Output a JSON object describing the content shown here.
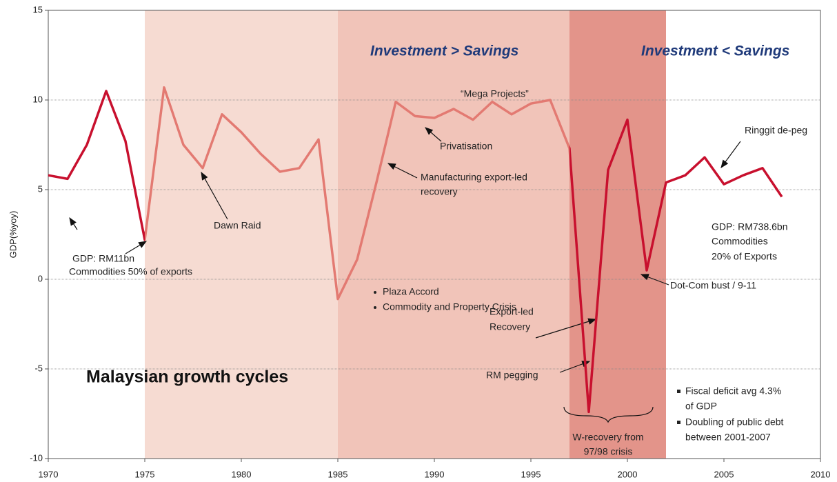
{
  "chart_data": {
    "type": "line",
    "title": "Malaysian growth cycles",
    "y_label": "GDP(%yoy)",
    "headers": [
      "Investment > Savings",
      "Investment < Savings"
    ],
    "x": [
      1970,
      1971,
      1972,
      1973,
      1974,
      1975,
      1976,
      1977,
      1978,
      1979,
      1980,
      1981,
      1982,
      1983,
      1984,
      1985,
      1986,
      1987,
      1988,
      1989,
      1990,
      1991,
      1992,
      1993,
      1994,
      1995,
      1996,
      1997,
      1998,
      1999,
      2000,
      2001,
      2002,
      2003,
      2004,
      2005,
      2006,
      2007,
      2008
    ],
    "series": [
      {
        "color": "#c8102e",
        "values": [
          5.8,
          5.6,
          7.5,
          10.5,
          7.7,
          2.2,
          10.7,
          7.5,
          6.2,
          9.2,
          8.2,
          7.0,
          6.0,
          6.2,
          7.8,
          -1.1,
          1.1,
          5.4,
          9.9,
          9.1,
          9.0,
          9.5,
          8.9,
          9.9,
          9.2,
          9.8,
          10.0,
          7.3,
          -7.4,
          6.1,
          8.9,
          0.5,
          5.4,
          5.8,
          6.8,
          5.3,
          5.8,
          6.2,
          4.6
        ]
      }
    ],
    "bands": [
      {
        "start": 1975,
        "end": 1985,
        "fill": "#f6dbd2",
        "line_color": "#e37a72"
      },
      {
        "start": 1985,
        "end": 1997,
        "fill": "#f1c4b9",
        "line_color": "#e37a72"
      },
      {
        "start": 1997,
        "end": 2002,
        "fill": "#e3948a"
      }
    ],
    "xlim": [
      1970,
      2010
    ],
    "xticks": [
      1970,
      1975,
      1980,
      1985,
      1990,
      1995,
      2000,
      2005,
      2010
    ],
    "ylim": [
      -10,
      15
    ],
    "yticks": [
      -10,
      -5,
      0,
      5,
      10,
      15
    ],
    "grid": true,
    "annotations": [
      [
        "GDP: RM11bn"
      ],
      [
        "Commodities 50% of exports"
      ],
      [
        "Dawn Raid"
      ],
      [
        "Privatisation"
      ],
      [
        "Manufacturing export-led",
        "recovery"
      ],
      [
        "“Mega Projects”"
      ],
      [
        "Plaza Accord",
        "Commodity and Property Crisis"
      ],
      [
        "Export-led",
        "Recovery"
      ],
      [
        "RM pegging"
      ],
      [
        "W-recovery from",
        "97/98 crisis"
      ],
      [
        "Dot-Com bust / 9-11"
      ],
      [
        "GDP: RM738.6bn",
        "Commodities",
        "20% of Exports"
      ],
      [
        "Ringgit de-peg"
      ],
      [
        "Fiscal deficit avg 4.3%",
        "of GDP",
        "Doubling of public debt",
        "between 2001-2007"
      ]
    ]
  }
}
